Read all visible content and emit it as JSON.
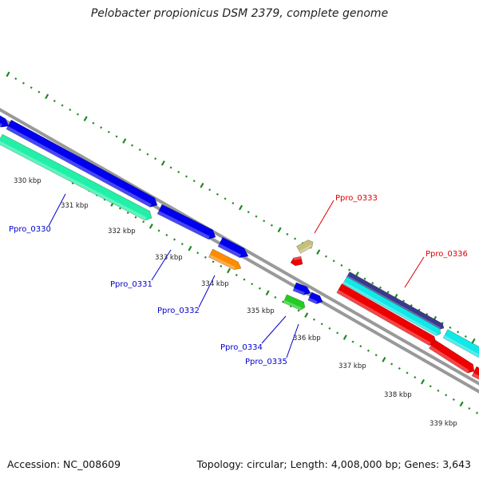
{
  "title": "Pelobacter propionicus DSM 2379, complete genome",
  "footer": {
    "accession": "Accession: NC_008609",
    "summary": "Topology: circular; Length: 4,008,000 bp; Genes: 3,643"
  },
  "colors": {
    "background": "#ffffff",
    "backbone": "#8c8c8c",
    "tick": "#1f8a1f",
    "blue_label": "#0000cc",
    "red_label": "#dd0000"
  },
  "scale_labels": [
    "330 kbp",
    "331 kbp",
    "332 kbp",
    "333 kbp",
    "334 kbp",
    "335 kbp",
    "336 kbp",
    "337 kbp",
    "338 kbp",
    "339 kbp"
  ],
  "gene_labels": [
    {
      "id": "Ppro_0330",
      "color": "#0000cc"
    },
    {
      "id": "Ppro_0331",
      "color": "#0000cc"
    },
    {
      "id": "Ppro_0332",
      "color": "#0000cc"
    },
    {
      "id": "Ppro_0333",
      "color": "#dd0000"
    },
    {
      "id": "Ppro_0334",
      "color": "#0000cc"
    },
    {
      "id": "Ppro_0335",
      "color": "#0000cc"
    },
    {
      "id": "Ppro_0336",
      "color": "#dd0000"
    }
  ],
  "features": [
    {
      "name": "feature-blue-a",
      "color": "#0000ee"
    },
    {
      "name": "feature-blue-b",
      "color": "#0000ee"
    },
    {
      "name": "feature-teal",
      "color": "#22f0a8"
    },
    {
      "name": "feature-blue-c",
      "color": "#0000ee"
    },
    {
      "name": "feature-blue-d",
      "color": "#0000ee"
    },
    {
      "name": "feature-orange",
      "color": "#ff8c00"
    },
    {
      "name": "feature-khaki",
      "color": "#c8c078"
    },
    {
      "name": "feature-red-small",
      "color": "#ee0000"
    },
    {
      "name": "feature-blue-e",
      "color": "#0000ee"
    },
    {
      "name": "feature-blue-f",
      "color": "#0000ee"
    },
    {
      "name": "feature-green",
      "color": "#22cc22"
    },
    {
      "name": "feature-navy",
      "color": "#3a3a8c"
    },
    {
      "name": "feature-cyan",
      "color": "#11e8e8"
    },
    {
      "name": "feature-red-a",
      "color": "#ee0000"
    },
    {
      "name": "feature-cyan-b",
      "color": "#11e8e8"
    },
    {
      "name": "feature-red-b",
      "color": "#ee0000"
    },
    {
      "name": "feature-red-c",
      "color": "#ee0000"
    }
  ]
}
